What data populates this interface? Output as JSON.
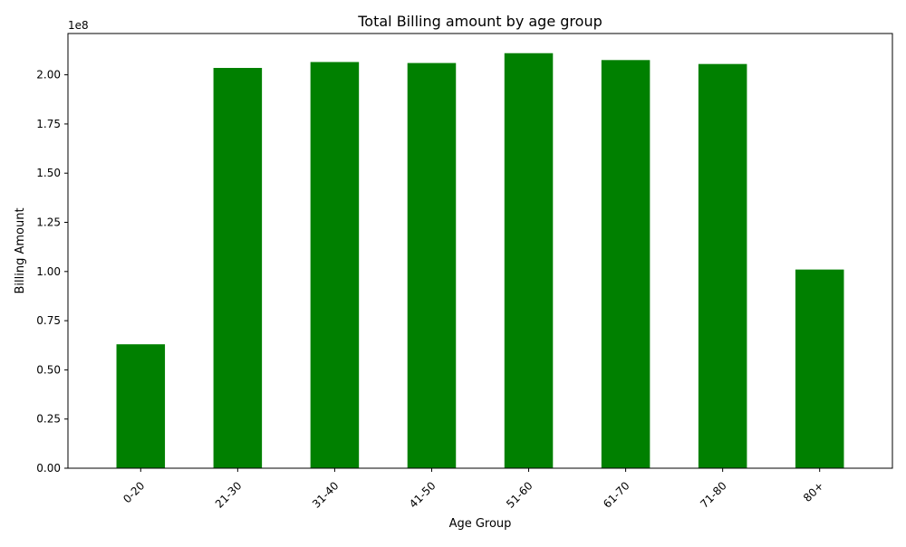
{
  "chart_data": {
    "type": "bar",
    "title": "Total Billing amount by age group",
    "xlabel": "Age Group",
    "ylabel": "Billing Amount",
    "offset_label": "1e8",
    "categories": [
      "0-20",
      "21-30",
      "31-40",
      "41-50",
      "51-60",
      "61-70",
      "71-80",
      "80+"
    ],
    "values": [
      63000000,
      203500000,
      206500000,
      206000000,
      211000000,
      207500000,
      205500000,
      101000000
    ],
    "ylim": [
      0,
      221000000
    ],
    "yticks": [
      0,
      25000000,
      50000000,
      75000000,
      100000000,
      125000000,
      150000000,
      175000000,
      200000000
    ],
    "ytick_labels": [
      "0.00",
      "0.25",
      "0.50",
      "0.75",
      "1.00",
      "1.25",
      "1.50",
      "1.75",
      "2.00"
    ],
    "bar_color": "#008000",
    "grid": false,
    "legend": false
  }
}
